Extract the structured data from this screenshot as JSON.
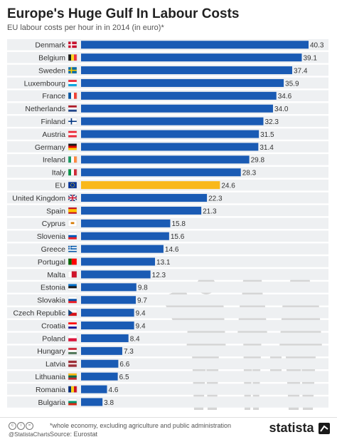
{
  "header": {
    "title": "Europe's Huge Gulf In Labour Costs",
    "subtitle": "EU labour costs per hour in in 2014 (in euro)*"
  },
  "chart_data": {
    "type": "bar",
    "orientation": "horizontal",
    "xlim": [
      0,
      40.3
    ],
    "grid": false,
    "colors": {
      "bar": "#1a5bb4",
      "highlight": "#f9b81a",
      "row": "#eef0f2"
    },
    "highlight_category": "EU",
    "categories": [
      "Denmark",
      "Belgium",
      "Sweden",
      "Luxembourg",
      "France",
      "Netherlands",
      "Finland",
      "Austria",
      "Germany",
      "Ireland",
      "Italy",
      "EU",
      "United Kingdom",
      "Spain",
      "Cyprus",
      "Slovenia",
      "Greece",
      "Portugal",
      "Malta",
      "Estonia",
      "Slovakia",
      "Czech Republic",
      "Croatia",
      "Poland",
      "Hungary",
      "Latvia",
      "Lithuania",
      "Romania",
      "Bulgaria"
    ],
    "values": [
      40.3,
      39.1,
      37.4,
      35.9,
      34.6,
      34.0,
      32.3,
      31.5,
      31.4,
      29.8,
      28.3,
      24.6,
      22.3,
      21.3,
      15.8,
      15.6,
      14.6,
      13.1,
      12.3,
      9.8,
      9.7,
      9.4,
      9.4,
      8.4,
      7.3,
      6.6,
      6.5,
      4.6,
      3.8
    ],
    "data_labels": [
      "40.3",
      "39.1",
      "37.4",
      "35.9",
      "34.6",
      "34.0",
      "32.3",
      "31.5",
      "31.4",
      "29.8",
      "28.3",
      "24.6",
      "22.3",
      "21.3",
      "15.8",
      "15.6",
      "14.6",
      "13.1",
      "12.3",
      "9.8",
      "9.7",
      "9.4",
      "9.4",
      "8.4",
      "7.3",
      "6.6",
      "6.5",
      "4.6",
      "3.8"
    ]
  },
  "flags": {
    "Denmark": {
      "k": "nordic",
      "c": [
        "#c8102e",
        "#ffffff"
      ]
    },
    "Belgium": {
      "k": "v3",
      "c": [
        "#1a1a1a",
        "#fdda24",
        "#ef3340"
      ]
    },
    "Sweden": {
      "k": "nordic",
      "c": [
        "#006aa7",
        "#fecc00"
      ]
    },
    "Luxembourg": {
      "k": "h3",
      "c": [
        "#ed2939",
        "#ffffff",
        "#00a1de"
      ]
    },
    "France": {
      "k": "v3",
      "c": [
        "#0055a4",
        "#ffffff",
        "#ef4135"
      ]
    },
    "Netherlands": {
      "k": "h3",
      "c": [
        "#ae1c28",
        "#ffffff",
        "#21468b"
      ]
    },
    "Finland": {
      "k": "nordic",
      "c": [
        "#ffffff",
        "#003580"
      ]
    },
    "Austria": {
      "k": "h3",
      "c": [
        "#ed2939",
        "#ffffff",
        "#ed2939"
      ]
    },
    "Germany": {
      "k": "h3",
      "c": [
        "#1a1a1a",
        "#dd0000",
        "#ffce00"
      ]
    },
    "Ireland": {
      "k": "v3",
      "c": [
        "#169b62",
        "#ffffff",
        "#ff883e"
      ]
    },
    "Italy": {
      "k": "v3",
      "c": [
        "#009246",
        "#ffffff",
        "#ce2b37"
      ]
    },
    "EU": {
      "k": "eu",
      "c": [
        "#003399",
        "#ffcc00"
      ]
    },
    "United Kingdom": {
      "k": "uk",
      "c": [
        "#012169",
        "#ffffff",
        "#c8102e"
      ]
    },
    "Spain": {
      "k": "spain",
      "c": [
        "#c60b1e",
        "#ffc400"
      ]
    },
    "Cyprus": {
      "k": "plain",
      "c": [
        "#ffffff",
        "#d57800"
      ]
    },
    "Slovenia": {
      "k": "h3",
      "c": [
        "#ffffff",
        "#0057b8",
        "#ed1c24"
      ]
    },
    "Greece": {
      "k": "stripes",
      "c": [
        "#0d5eaf",
        "#ffffff"
      ]
    },
    "Portugal": {
      "k": "v2",
      "c": [
        "#006600",
        "#ff0000"
      ]
    },
    "Malta": {
      "k": "v2",
      "c": [
        "#ffffff",
        "#cf142b"
      ]
    },
    "Estonia": {
      "k": "h3",
      "c": [
        "#0072ce",
        "#1a1a1a",
        "#ffffff"
      ]
    },
    "Slovakia": {
      "k": "h3",
      "c": [
        "#ffffff",
        "#0b4ea2",
        "#ee1c25"
      ]
    },
    "Czech Republic": {
      "k": "czech",
      "c": [
        "#ffffff",
        "#d7141a",
        "#11457e"
      ]
    },
    "Croatia": {
      "k": "h3",
      "c": [
        "#ff0000",
        "#ffffff",
        "#171796"
      ]
    },
    "Poland": {
      "k": "h2",
      "c": [
        "#ffffff",
        "#dc143c"
      ]
    },
    "Hungary": {
      "k": "h3",
      "c": [
        "#ce2939",
        "#ffffff",
        "#477050"
      ]
    },
    "Latvia": {
      "k": "latvia",
      "c": [
        "#9e3039",
        "#ffffff"
      ]
    },
    "Lithuania": {
      "k": "h3",
      "c": [
        "#fdb913",
        "#006a44",
        "#c1272d"
      ]
    },
    "Romania": {
      "k": "v3",
      "c": [
        "#002b7f",
        "#fcd116",
        "#ce1126"
      ]
    },
    "Bulgaria": {
      "k": "h3",
      "c": [
        "#ffffff",
        "#00966e",
        "#d62612"
      ]
    }
  },
  "footer": {
    "note": "*whole economy, excluding agriculture and public administration",
    "source": "Source: Eurostat",
    "handle": "@StatistaCharts",
    "cc_icons": [
      "c",
      "i",
      "="
    ],
    "brand": "statista"
  }
}
